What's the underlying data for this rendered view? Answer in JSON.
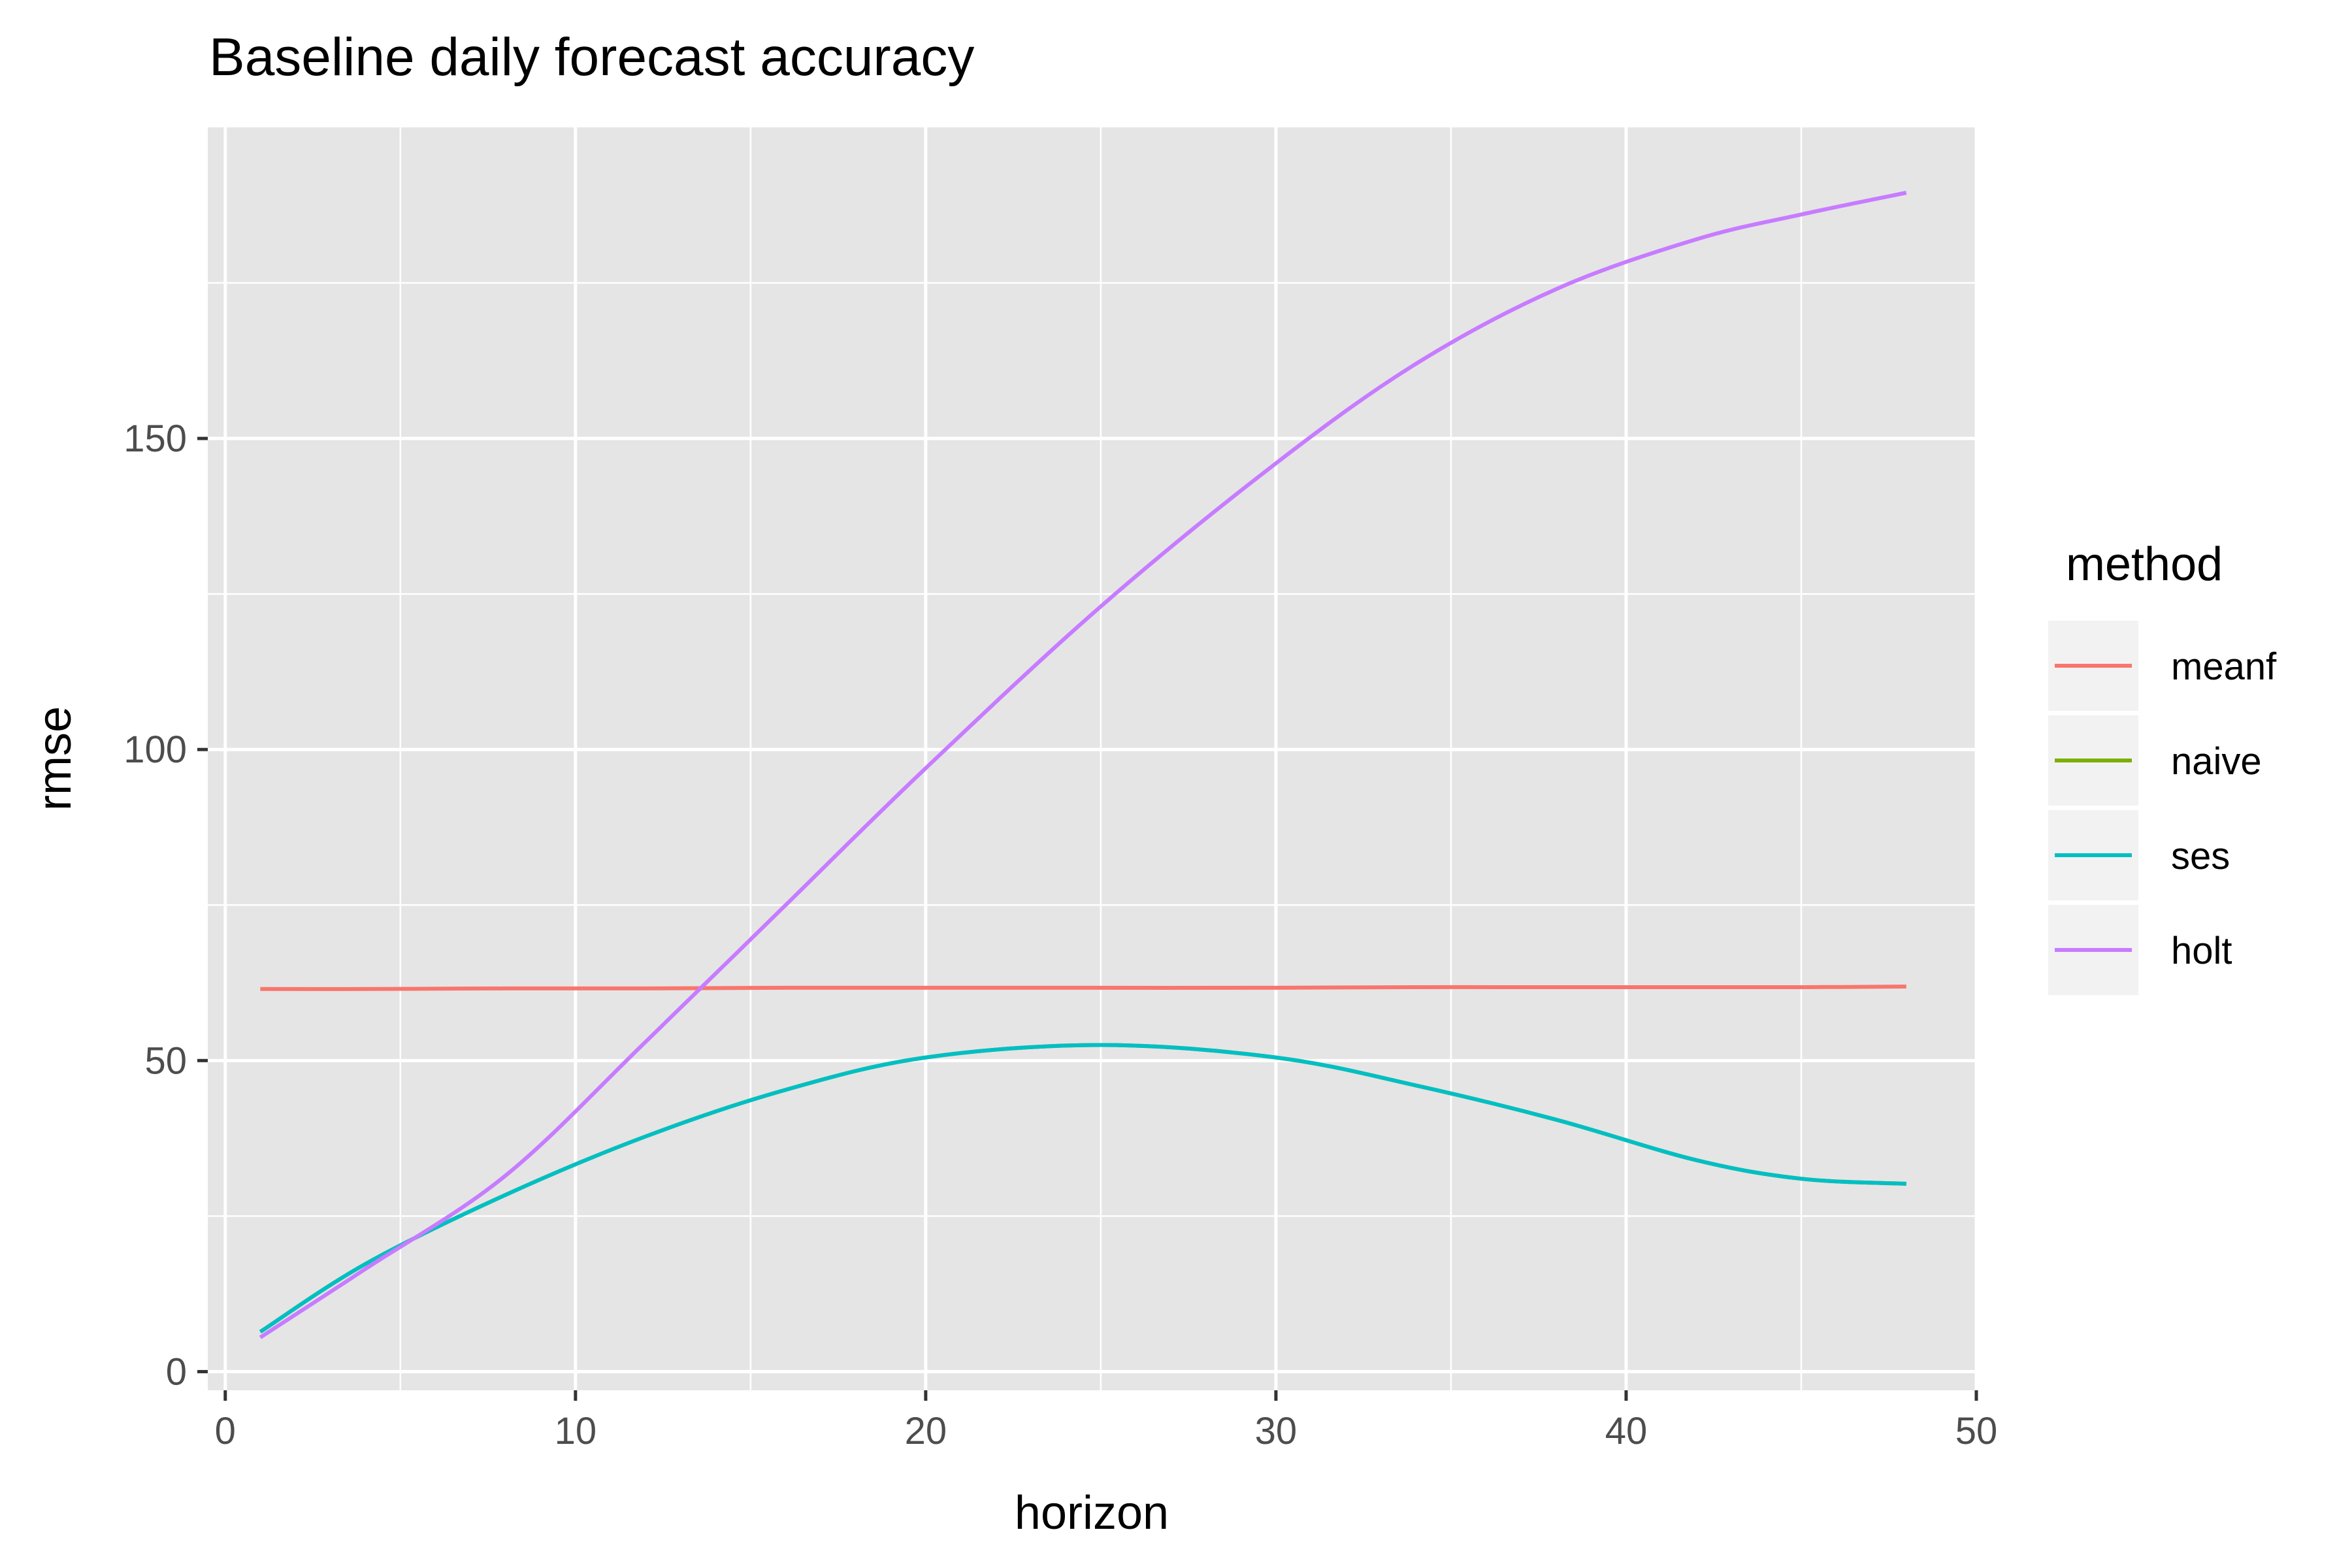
{
  "chart_data": {
    "type": "line",
    "title": "Baseline daily forecast accuracy",
    "xlabel": "horizon",
    "ylabel": "rmse",
    "xlim": [
      -0.5,
      50
    ],
    "ylim": [
      -3,
      200
    ],
    "x_ticks": [
      0,
      10,
      20,
      30,
      40,
      50
    ],
    "y_ticks": [
      0,
      50,
      100,
      150
    ],
    "grid": true,
    "legend_title": "method",
    "legend_position": "right",
    "x": [
      1,
      4,
      8,
      12,
      16,
      20,
      25,
      30,
      34,
      38,
      42,
      45,
      48
    ],
    "series": [
      {
        "name": "meanf",
        "color": "#F8766D",
        "values": [
          61.5,
          61.5,
          61.6,
          61.6,
          61.7,
          61.7,
          61.7,
          61.7,
          61.8,
          61.8,
          61.8,
          61.8,
          61.9
        ]
      },
      {
        "name": "naive",
        "color": "#7CAE00",
        "values": [
          6.4,
          17.3,
          28.4,
          37.8,
          45.3,
          50.5,
          52.5,
          50.5,
          46.0,
          40.5,
          34.0,
          31.0,
          30.2
        ]
      },
      {
        "name": "ses",
        "color": "#00BFC4",
        "values": [
          6.4,
          17.3,
          28.4,
          37.8,
          45.3,
          50.5,
          52.5,
          50.5,
          46.0,
          40.5,
          34.0,
          31.0,
          30.2
        ]
      },
      {
        "name": "holt",
        "color": "#C77CFF",
        "values": [
          5.5,
          16.5,
          31.5,
          53.0,
          75.0,
          97.0,
          123.0,
          146.0,
          162.0,
          174.0,
          182.0,
          186.0,
          189.5
        ]
      }
    ]
  }
}
